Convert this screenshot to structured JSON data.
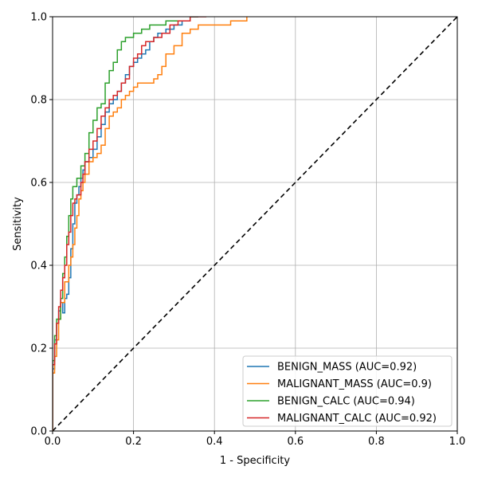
{
  "chart_data": {
    "type": "line",
    "xlabel": "1 - Specificity",
    "ylabel": "Sensitivity",
    "xlim": [
      0,
      1
    ],
    "ylim": [
      0,
      1
    ],
    "xticks": [
      "0.0",
      "0.2",
      "0.4",
      "0.6",
      "0.8",
      "1.0"
    ],
    "yticks": [
      "0.0",
      "0.2",
      "0.4",
      "0.6",
      "0.8",
      "1.0"
    ],
    "grid": true,
    "legend_position": "lower-right",
    "reference_line": {
      "style": "dashed",
      "color": "#000000",
      "points": [
        [
          0,
          0
        ],
        [
          1,
          1
        ]
      ]
    },
    "series": [
      {
        "name": "BENIGN_MASS (AUC=0.92)",
        "color": "#1f77b4",
        "points": [
          [
            0,
            0
          ],
          [
            0,
            0.15
          ],
          [
            0.005,
            0.22
          ],
          [
            0.01,
            0.26
          ],
          [
            0.015,
            0.29
          ],
          [
            0.02,
            0.31
          ],
          [
            0.025,
            0.285
          ],
          [
            0.03,
            0.32
          ],
          [
            0.035,
            0.33
          ],
          [
            0.04,
            0.37
          ],
          [
            0.045,
            0.44
          ],
          [
            0.05,
            0.5
          ],
          [
            0.055,
            0.55
          ],
          [
            0.06,
            0.57
          ],
          [
            0.065,
            0.59
          ],
          [
            0.07,
            0.61
          ],
          [
            0.075,
            0.63
          ],
          [
            0.08,
            0.65
          ],
          [
            0.09,
            0.66
          ],
          [
            0.1,
            0.68
          ],
          [
            0.11,
            0.71
          ],
          [
            0.12,
            0.74
          ],
          [
            0.13,
            0.77
          ],
          [
            0.14,
            0.79
          ],
          [
            0.15,
            0.8
          ],
          [
            0.16,
            0.82
          ],
          [
            0.17,
            0.84
          ],
          [
            0.18,
            0.86
          ],
          [
            0.19,
            0.88
          ],
          [
            0.2,
            0.89
          ],
          [
            0.21,
            0.9
          ],
          [
            0.22,
            0.91
          ],
          [
            0.23,
            0.92
          ],
          [
            0.24,
            0.94
          ],
          [
            0.25,
            0.95
          ],
          [
            0.26,
            0.96
          ],
          [
            0.28,
            0.97
          ],
          [
            0.3,
            0.98
          ],
          [
            0.32,
            0.99
          ],
          [
            0.34,
            1.0
          ],
          [
            0.36,
            1.0
          ]
        ]
      },
      {
        "name": "MALIGNANT_MASS (AUC=0.9)",
        "color": "#ff7f0e",
        "points": [
          [
            0,
            0
          ],
          [
            0,
            0.14
          ],
          [
            0.005,
            0.18
          ],
          [
            0.01,
            0.22
          ],
          [
            0.015,
            0.27
          ],
          [
            0.02,
            0.31
          ],
          [
            0.03,
            0.36
          ],
          [
            0.04,
            0.4
          ],
          [
            0.045,
            0.42
          ],
          [
            0.05,
            0.45
          ],
          [
            0.055,
            0.49
          ],
          [
            0.06,
            0.52
          ],
          [
            0.065,
            0.56
          ],
          [
            0.07,
            0.58
          ],
          [
            0.075,
            0.6
          ],
          [
            0.08,
            0.62
          ],
          [
            0.09,
            0.65
          ],
          [
            0.1,
            0.66
          ],
          [
            0.11,
            0.67
          ],
          [
            0.12,
            0.69
          ],
          [
            0.13,
            0.73
          ],
          [
            0.14,
            0.76
          ],
          [
            0.15,
            0.77
          ],
          [
            0.16,
            0.78
          ],
          [
            0.17,
            0.8
          ],
          [
            0.18,
            0.81
          ],
          [
            0.19,
            0.82
          ],
          [
            0.2,
            0.83
          ],
          [
            0.21,
            0.84
          ],
          [
            0.24,
            0.84
          ],
          [
            0.25,
            0.85
          ],
          [
            0.26,
            0.86
          ],
          [
            0.27,
            0.88
          ],
          [
            0.28,
            0.91
          ],
          [
            0.3,
            0.93
          ],
          [
            0.32,
            0.96
          ],
          [
            0.34,
            0.97
          ],
          [
            0.36,
            0.98
          ],
          [
            0.4,
            0.98
          ],
          [
            0.44,
            0.99
          ],
          [
            0.48,
            1.0
          ]
        ]
      },
      {
        "name": "BENIGN_CALC (AUC=0.94)",
        "color": "#2ca02c",
        "points": [
          [
            0,
            0
          ],
          [
            0,
            0.17
          ],
          [
            0.005,
            0.23
          ],
          [
            0.01,
            0.27
          ],
          [
            0.02,
            0.32
          ],
          [
            0.025,
            0.38
          ],
          [
            0.03,
            0.42
          ],
          [
            0.035,
            0.47
          ],
          [
            0.04,
            0.52
          ],
          [
            0.045,
            0.56
          ],
          [
            0.05,
            0.59
          ],
          [
            0.06,
            0.61
          ],
          [
            0.07,
            0.64
          ],
          [
            0.08,
            0.67
          ],
          [
            0.09,
            0.72
          ],
          [
            0.1,
            0.75
          ],
          [
            0.11,
            0.78
          ],
          [
            0.12,
            0.79
          ],
          [
            0.13,
            0.84
          ],
          [
            0.14,
            0.87
          ],
          [
            0.15,
            0.89
          ],
          [
            0.16,
            0.92
          ],
          [
            0.17,
            0.94
          ],
          [
            0.18,
            0.95
          ],
          [
            0.2,
            0.96
          ],
          [
            0.22,
            0.97
          ],
          [
            0.24,
            0.98
          ],
          [
            0.27,
            0.98
          ],
          [
            0.28,
            0.99
          ],
          [
            0.34,
            1.0
          ],
          [
            0.36,
            1.0
          ]
        ]
      },
      {
        "name": "MALIGNANT_CALC (AUC=0.92)",
        "color": "#d62728",
        "points": [
          [
            0,
            0
          ],
          [
            0,
            0.16
          ],
          [
            0.005,
            0.21
          ],
          [
            0.01,
            0.26
          ],
          [
            0.015,
            0.3
          ],
          [
            0.02,
            0.34
          ],
          [
            0.025,
            0.37
          ],
          [
            0.03,
            0.4
          ],
          [
            0.035,
            0.45
          ],
          [
            0.04,
            0.48
          ],
          [
            0.045,
            0.52
          ],
          [
            0.05,
            0.55
          ],
          [
            0.055,
            0.56
          ],
          [
            0.06,
            0.57
          ],
          [
            0.07,
            0.6
          ],
          [
            0.075,
            0.62
          ],
          [
            0.08,
            0.65
          ],
          [
            0.09,
            0.68
          ],
          [
            0.1,
            0.7
          ],
          [
            0.11,
            0.73
          ],
          [
            0.12,
            0.76
          ],
          [
            0.13,
            0.78
          ],
          [
            0.14,
            0.8
          ],
          [
            0.15,
            0.81
          ],
          [
            0.16,
            0.82
          ],
          [
            0.17,
            0.84
          ],
          [
            0.18,
            0.85
          ],
          [
            0.19,
            0.88
          ],
          [
            0.2,
            0.9
          ],
          [
            0.21,
            0.91
          ],
          [
            0.22,
            0.93
          ],
          [
            0.23,
            0.94
          ],
          [
            0.25,
            0.95
          ],
          [
            0.27,
            0.96
          ],
          [
            0.29,
            0.98
          ],
          [
            0.31,
            0.99
          ],
          [
            0.34,
            1.0
          ],
          [
            0.38,
            1.0
          ]
        ]
      }
    ]
  }
}
